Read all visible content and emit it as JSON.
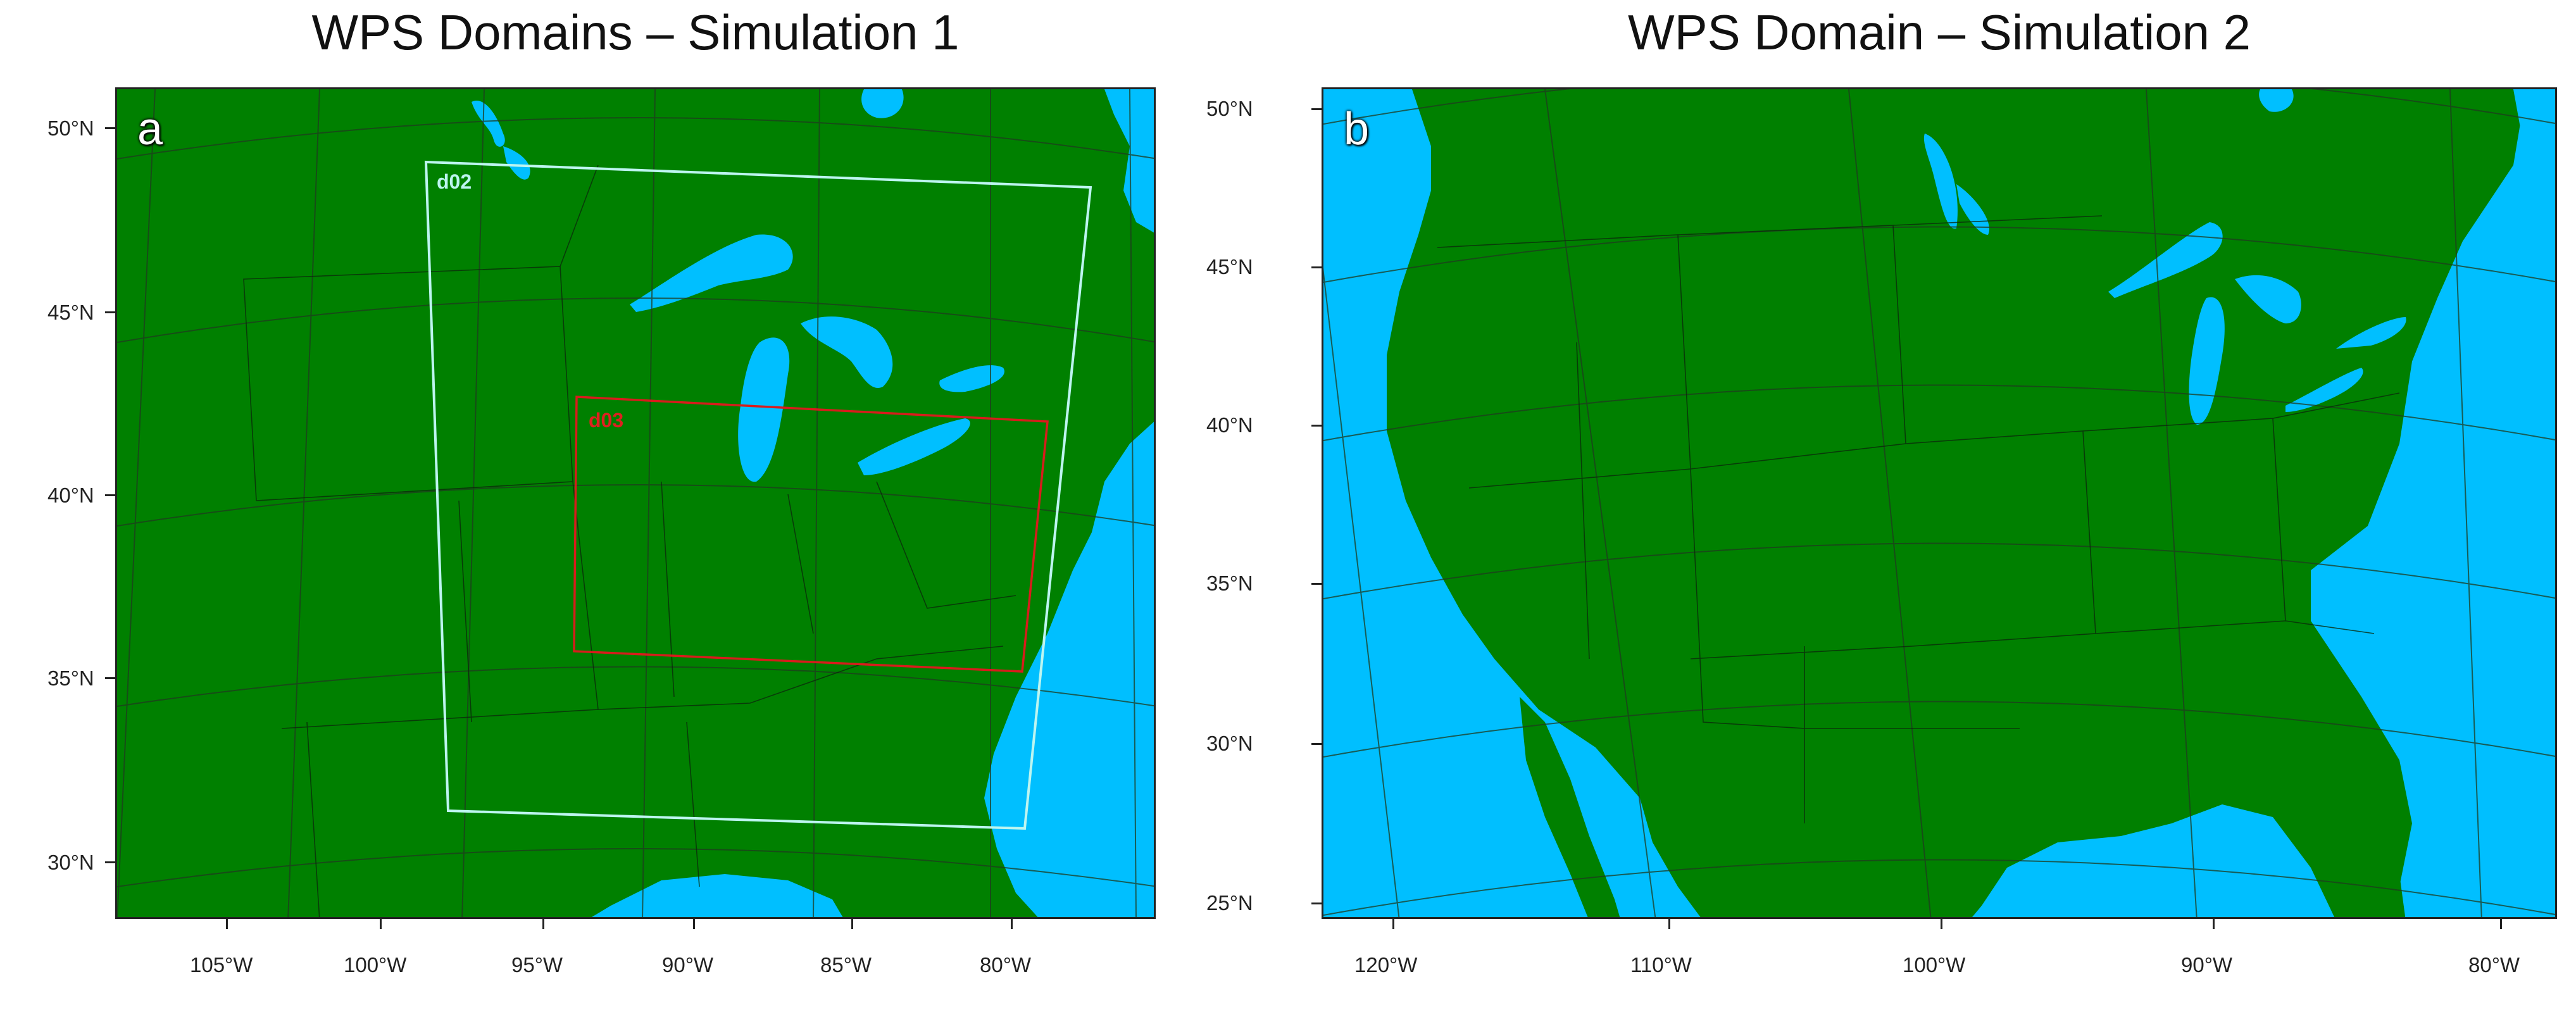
{
  "panels": {
    "a": {
      "title": "WPS Domains – Simulation 1",
      "letter": "a",
      "lat_labels": [
        "50°N",
        "45°N",
        "40°N",
        "35°N",
        "30°N"
      ],
      "lon_labels": [
        "105°W",
        "100°W",
        "95°W",
        "90°W",
        "85°W",
        "80°W"
      ],
      "domains": [
        {
          "label": "d02",
          "color": "#bdf5f0"
        },
        {
          "label": "d03",
          "color": "#d81c1c"
        }
      ]
    },
    "b": {
      "title": "WPS Domain – Simulation 2",
      "letter": "b",
      "lat_labels": [
        "50°N",
        "45°N",
        "40°N",
        "35°N",
        "30°N",
        "25°N"
      ],
      "lon_labels": [
        "120°W",
        "110°W",
        "100°W",
        "90°W",
        "80°W"
      ]
    }
  },
  "colors": {
    "land": "#008000",
    "water": "#00bfff",
    "grid": "#1f3b1f"
  }
}
